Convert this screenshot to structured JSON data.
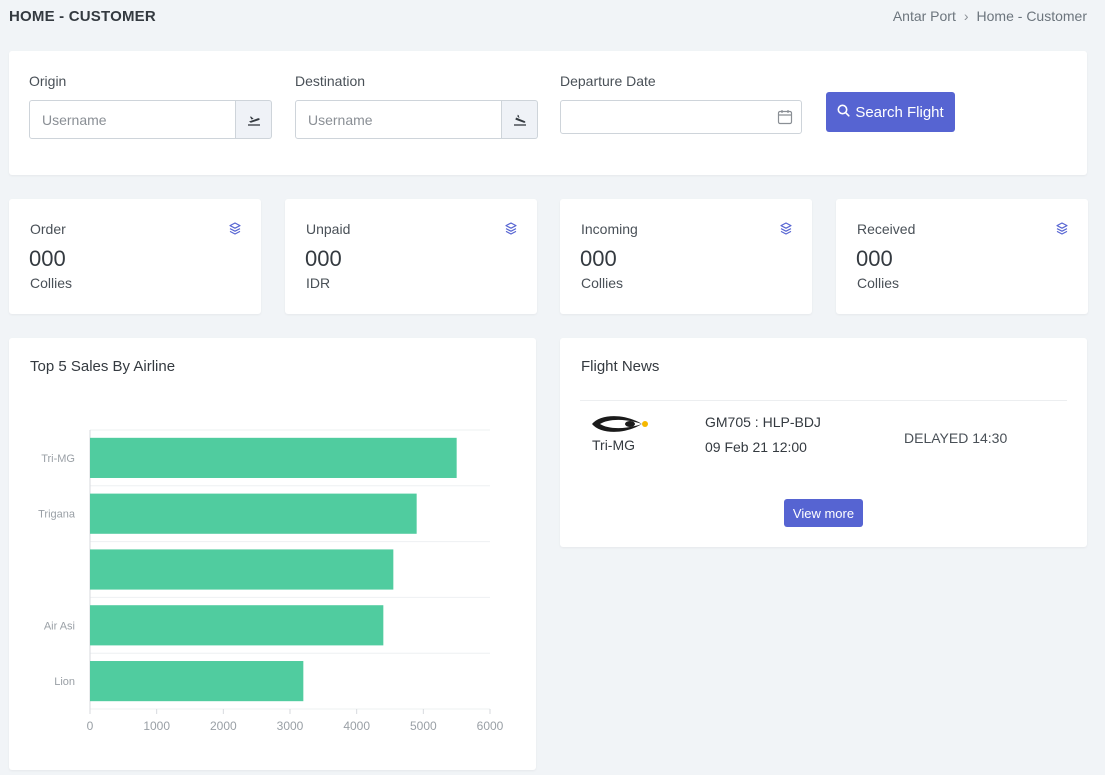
{
  "header": {
    "title": "HOME - CUSTOMER",
    "breadcrumb": [
      "Antar Port",
      "Home - Customer"
    ]
  },
  "search": {
    "origin_label": "Origin",
    "origin_placeholder": "Username",
    "destination_label": "Destination",
    "destination_placeholder": "Username",
    "departure_label": "Departure Date",
    "departure_value": "",
    "button_label": "Search Flight"
  },
  "stats": [
    {
      "label": "Order",
      "value": "000",
      "unit": "Collies"
    },
    {
      "label": "Unpaid",
      "value": "000",
      "unit": "IDR"
    },
    {
      "label": "Incoming",
      "value": "000",
      "unit": "Collies"
    },
    {
      "label": "Received",
      "value": "000",
      "unit": "Collies"
    }
  ],
  "sales_card": {
    "title": "Top 5 Sales By Airline"
  },
  "chart_data": {
    "type": "bar",
    "orientation": "horizontal",
    "title": "Top 5 Sales By Airline",
    "categories": [
      "Tri-MG",
      "Trigana",
      "",
      "Air Asi",
      "Lion"
    ],
    "category_tick_labels": [
      "Tri-MG",
      "Trigana",
      "Air Asi",
      "Lion"
    ],
    "values": [
      5500,
      4900,
      4550,
      4400,
      3200
    ],
    "xlim": [
      0,
      6000
    ],
    "xticks": [
      0,
      1000,
      2000,
      3000,
      4000,
      5000,
      6000
    ],
    "grid": true,
    "color": "#50cc9f"
  },
  "news": {
    "title": "Flight News",
    "items": [
      {
        "airline": "Tri-MG",
        "flight": "GM705 : HLP-BDJ",
        "datetime": "09 Feb 21 12:00",
        "status": "DELAYED 14:30"
      }
    ],
    "view_more_label": "View more"
  },
  "colors": {
    "primary": "#5664d2",
    "bar": "#50cc9f",
    "background": "#f1f4f7"
  },
  "icons": {
    "origin_addon": "plane-takeoff-icon",
    "destination_addon": "plane-landing-icon",
    "date": "calendar-icon",
    "search": "search-icon",
    "stat": "layers-icon"
  }
}
